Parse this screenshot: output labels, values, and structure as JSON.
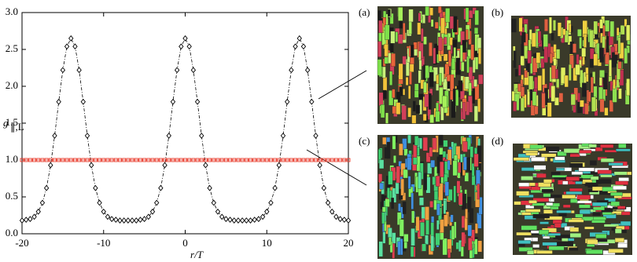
{
  "chart_data": {
    "type": "line",
    "x_label": "r/T",
    "y_label": "g",
    "y_label_sub": "∥,L",
    "x": [
      -20,
      -19.5,
      -19,
      -18.5,
      -18,
      -17.5,
      -17,
      -16.5,
      -16,
      -15.5,
      -15,
      -14.5,
      -14,
      -13.5,
      -13,
      -12.5,
      -12,
      -11.5,
      -11,
      -10.5,
      -10,
      -9.5,
      -9,
      -8.5,
      -8,
      -7.5,
      -7,
      -6.5,
      -6,
      -5.5,
      -5,
      -4.5,
      -4,
      -3.5,
      -3,
      -2.5,
      -2,
      -1.5,
      -1,
      -0.5,
      0,
      0.5,
      1,
      1.5,
      2,
      2.5,
      3,
      3.5,
      4,
      4.5,
      5,
      5.5,
      6,
      6.5,
      7,
      7.5,
      8,
      8.5,
      9,
      9.5,
      10,
      10.5,
      11,
      11.5,
      12,
      12.5,
      13,
      13.5,
      14,
      14.5,
      15,
      15.5,
      16,
      16.5,
      17,
      17.5,
      18,
      18.5,
      19,
      19.5,
      20
    ],
    "series": [
      {
        "color": "#000000",
        "values": [
          0.18,
          0.19,
          0.2,
          0.23,
          0.3,
          0.42,
          0.62,
          0.93,
          1.33,
          1.79,
          2.22,
          2.54,
          2.65,
          2.54,
          2.22,
          1.79,
          1.33,
          0.93,
          0.62,
          0.42,
          0.3,
          0.23,
          0.2,
          0.19,
          0.18,
          0.18,
          0.18,
          0.18,
          0.18,
          0.19,
          0.2,
          0.23,
          0.3,
          0.42,
          0.62,
          0.93,
          1.33,
          1.79,
          2.22,
          2.54,
          2.65,
          2.54,
          2.22,
          1.79,
          1.33,
          0.93,
          0.62,
          0.42,
          0.3,
          0.23,
          0.2,
          0.19,
          0.18,
          0.18,
          0.18,
          0.18,
          0.18,
          0.19,
          0.2,
          0.23,
          0.3,
          0.42,
          0.62,
          0.93,
          1.33,
          1.79,
          2.22,
          2.54,
          2.65,
          2.54,
          2.22,
          1.79,
          1.33,
          0.93,
          0.62,
          0.42,
          0.3,
          0.23,
          0.2,
          0.19,
          0.18
        ]
      },
      {
        "color": "#e8392a",
        "values": [
          1,
          1,
          1,
          1,
          1,
          1,
          1,
          1,
          1,
          1,
          1,
          1,
          1,
          1,
          1,
          1,
          1,
          1,
          1,
          1,
          1,
          1,
          1,
          1,
          1,
          1,
          1,
          1,
          1,
          1,
          1,
          1,
          1,
          1,
          1,
          1,
          1,
          1,
          1,
          1,
          1,
          1,
          1,
          1,
          1,
          1,
          1,
          1,
          1,
          1,
          1,
          1,
          1,
          1,
          1,
          1,
          1,
          1,
          1,
          1,
          1,
          1,
          1,
          1,
          1,
          1,
          1,
          1,
          1,
          1,
          1,
          1,
          1,
          1,
          1,
          1,
          1,
          1,
          1,
          1,
          1
        ]
      }
    ],
    "xlim": [
      -20,
      20
    ],
    "xticks": [
      -20,
      -10,
      0,
      10,
      20
    ],
    "ylim": [
      0,
      3
    ],
    "yticks": [
      {
        "value": 0,
        "label": "0.0"
      },
      {
        "value": 0.5,
        "label": "0.5"
      },
      {
        "value": 1,
        "label": "1.0"
      },
      {
        "value": 1.5,
        "label": "1.5"
      },
      {
        "value": 2,
        "label": "2.0"
      },
      {
        "value": 2.5,
        "label": "2.5"
      },
      {
        "value": 3,
        "label": "3.0"
      }
    ],
    "panels": [
      "(a)",
      "(b)",
      "(c)",
      "(d)"
    ]
  }
}
